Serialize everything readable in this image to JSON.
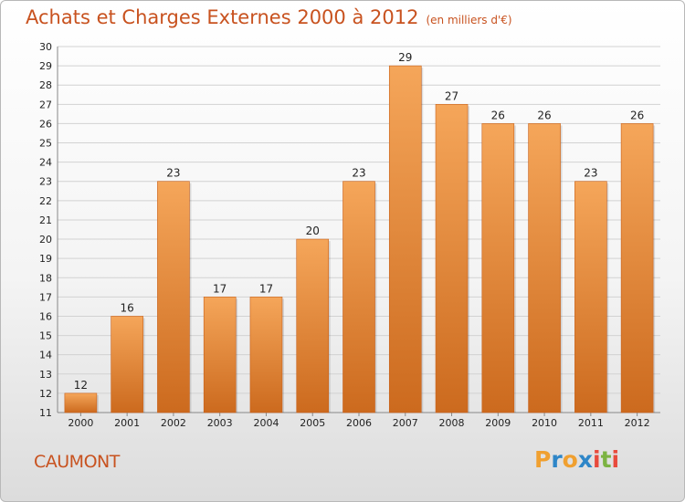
{
  "header": {
    "title": "Achats et Charges Externes 2000 à 2012",
    "unit": "(en milliers d'€)"
  },
  "footer": {
    "town": "CAUMONT",
    "logo_letters": [
      "P",
      "r",
      "o",
      "x",
      "i",
      "t",
      "i"
    ],
    "logo_colors": [
      "#f0a030",
      "#2e86c8",
      "#f0a030",
      "#2e86c8",
      "#e84a3c",
      "#7cb342",
      "#e84a3c"
    ]
  },
  "colors": {
    "bar_light": "#f5a65a",
    "bar_dark": "#cc6a1e",
    "title": "#c8521f"
  },
  "chart_data": {
    "type": "bar",
    "title": "Achats et Charges Externes 2000 à 2012",
    "subtitle": "(en milliers d'€)",
    "xlabel": "",
    "ylabel": "",
    "categories": [
      "2000",
      "2001",
      "2002",
      "2003",
      "2004",
      "2005",
      "2006",
      "2007",
      "2008",
      "2009",
      "2010",
      "2011",
      "2012"
    ],
    "values": [
      12,
      16,
      23,
      17,
      17,
      20,
      23,
      29,
      27,
      26,
      26,
      23,
      26
    ],
    "ylim": [
      11,
      30
    ],
    "yticks": [
      11,
      12,
      13,
      14,
      15,
      16,
      17,
      18,
      19,
      20,
      21,
      22,
      23,
      24,
      25,
      26,
      27,
      28,
      29,
      30
    ],
    "grid": true,
    "legend": "none"
  }
}
